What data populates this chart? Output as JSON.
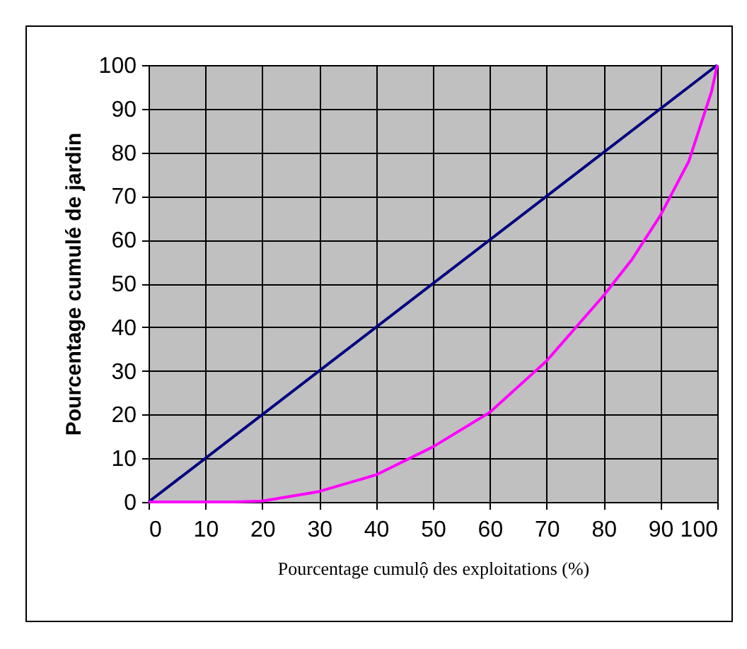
{
  "chart_data": {
    "type": "line",
    "xlabel": "Pourcentage cumulộ des exploitations (%)",
    "ylabel": "Pourcentage cumulé de jardin",
    "xlim": [
      0,
      100
    ],
    "ylim": [
      0,
      100
    ],
    "xticks": [
      0,
      10,
      20,
      30,
      40,
      50,
      60,
      70,
      80,
      90,
      100
    ],
    "yticks": [
      0,
      10,
      20,
      30,
      40,
      50,
      60,
      70,
      80,
      90,
      100
    ],
    "grid": true,
    "legend": false,
    "marker": "none",
    "line_style": "solid",
    "series": [
      {
        "color": "#000080",
        "x": [
          0,
          100
        ],
        "values": [
          0,
          100
        ]
      },
      {
        "color": "#ff00ff",
        "x": [
          0,
          10,
          15,
          20,
          30,
          40,
          50,
          60,
          70,
          80,
          85,
          90,
          95,
          97,
          99,
          100
        ],
        "values": [
          0,
          0,
          0,
          0.2,
          2.4,
          6.2,
          12.6,
          20.5,
          32.3,
          47.2,
          55.5,
          65.6,
          78,
          86,
          94,
          100
        ]
      }
    ]
  }
}
